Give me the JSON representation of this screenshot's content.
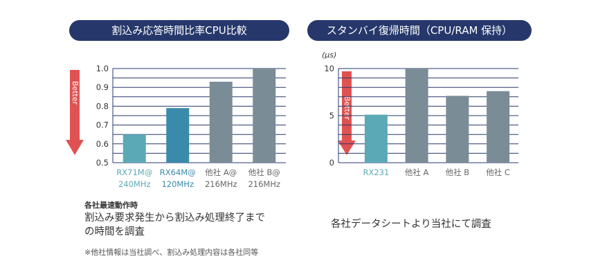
{
  "left_panel": {
    "title": "割込み応答時間比率CPU比較",
    "note_heading": "各社最速動作時",
    "note_line1": "割込み要求発生から割込み処理終了まで",
    "note_line2": "の時間を調査",
    "footnote": "※他社情報は当社調べ、割込み処理内容は各社同等"
  },
  "right_panel": {
    "title": "スタンバイ復帰時間（CPU/RAM 保持）",
    "note": "各社データシートより当社にて調査"
  },
  "arrow_label": "Better",
  "colors": {
    "teal": "#5ba9b6",
    "blue": "#3a8aab",
    "gray": "#7a8c96",
    "axis": "#26386b",
    "arrow": "#e05252",
    "pill": "#26386b"
  },
  "chart_data": [
    {
      "type": "bar",
      "title": "割込み応答時間比率CPU比較",
      "ylim": [
        0.5,
        1.0
      ],
      "yticks": [
        "0.5",
        "0.6",
        "0.7",
        "0.8",
        "0.9",
        "1.0"
      ],
      "categories": [
        {
          "line1": "RX71M@",
          "line2": "240MHz",
          "color": "#5ba9b6",
          "label_color": "#5ba9b6"
        },
        {
          "line1": "RX64M@",
          "line2": "120MHz",
          "color": "#3a8aab",
          "label_color": "#3a8aab"
        },
        {
          "line1": "他社 A@",
          "line2": "216MHz",
          "color": "#7a8c96",
          "label_color": "#666666"
        },
        {
          "line1": "他社 B@",
          "line2": "216MHz",
          "color": "#7a8c96",
          "label_color": "#666666"
        }
      ],
      "values": [
        0.65,
        0.79,
        0.93,
        1.0
      ]
    },
    {
      "type": "bar",
      "title": "スタンバイ復帰時間（CPU/RAM 保持）",
      "unit": "(µs)",
      "ylim": [
        0,
        10
      ],
      "yticks": [
        "0",
        "5",
        "10"
      ],
      "categories": [
        {
          "line1": "RX231",
          "color": "#5ba9b6",
          "label_color": "#5ba9b6"
        },
        {
          "line1": "他社 A",
          "color": "#7a8c96",
          "label_color": "#666666"
        },
        {
          "line1": "他社 B",
          "color": "#7a8c96",
          "label_color": "#666666"
        },
        {
          "line1": "他社 C",
          "color": "#7a8c96",
          "label_color": "#666666"
        }
      ],
      "values": [
        5.1,
        10.0,
        7.1,
        7.6
      ]
    }
  ]
}
